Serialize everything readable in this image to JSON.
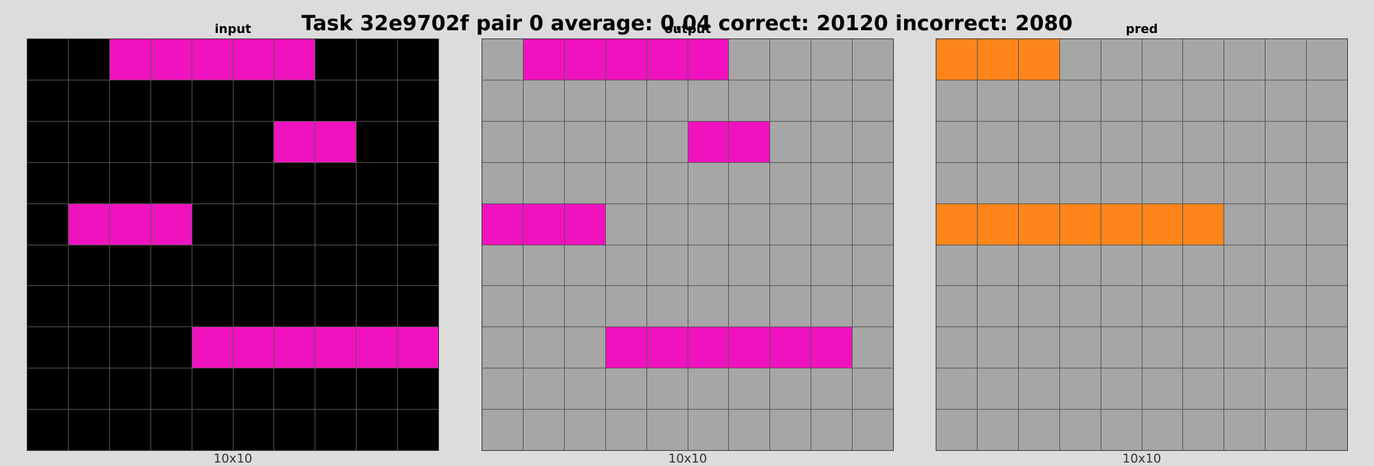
{
  "title": "Task 32e9702f pair 0 average: 0.04 correct: 20120 incorrect: 2080",
  "palette": {
    "0": "#000000",
    "5": "#a6a6a6",
    "6": "#f012be",
    "7": "#ff851b"
  },
  "panels": [
    {
      "title": "input",
      "dims": "10x10",
      "grid": [
        [
          0,
          0,
          6,
          6,
          6,
          6,
          6,
          0,
          0,
          0
        ],
        [
          0,
          0,
          0,
          0,
          0,
          0,
          0,
          0,
          0,
          0
        ],
        [
          0,
          0,
          0,
          0,
          0,
          0,
          6,
          6,
          0,
          0
        ],
        [
          0,
          0,
          0,
          0,
          0,
          0,
          0,
          0,
          0,
          0
        ],
        [
          0,
          6,
          6,
          6,
          0,
          0,
          0,
          0,
          0,
          0
        ],
        [
          0,
          0,
          0,
          0,
          0,
          0,
          0,
          0,
          0,
          0
        ],
        [
          0,
          0,
          0,
          0,
          0,
          0,
          0,
          0,
          0,
          0
        ],
        [
          0,
          0,
          0,
          0,
          6,
          6,
          6,
          6,
          6,
          6
        ],
        [
          0,
          0,
          0,
          0,
          0,
          0,
          0,
          0,
          0,
          0
        ],
        [
          0,
          0,
          0,
          0,
          0,
          0,
          0,
          0,
          0,
          0
        ]
      ]
    },
    {
      "title": "output",
      "dims": "10x10",
      "grid": [
        [
          5,
          6,
          6,
          6,
          6,
          6,
          5,
          5,
          5,
          5
        ],
        [
          5,
          5,
          5,
          5,
          5,
          5,
          5,
          5,
          5,
          5
        ],
        [
          5,
          5,
          5,
          5,
          5,
          6,
          6,
          5,
          5,
          5
        ],
        [
          5,
          5,
          5,
          5,
          5,
          5,
          5,
          5,
          5,
          5
        ],
        [
          6,
          6,
          6,
          5,
          5,
          5,
          5,
          5,
          5,
          5
        ],
        [
          5,
          5,
          5,
          5,
          5,
          5,
          5,
          5,
          5,
          5
        ],
        [
          5,
          5,
          5,
          5,
          5,
          5,
          5,
          5,
          5,
          5
        ],
        [
          5,
          5,
          5,
          6,
          6,
          6,
          6,
          6,
          6,
          5
        ],
        [
          5,
          5,
          5,
          5,
          5,
          5,
          5,
          5,
          5,
          5
        ],
        [
          5,
          5,
          5,
          5,
          5,
          5,
          5,
          5,
          5,
          5
        ]
      ]
    },
    {
      "title": "pred",
      "dims": "10x10",
      "grid": [
        [
          7,
          7,
          7,
          5,
          5,
          5,
          5,
          5,
          5,
          5
        ],
        [
          5,
          5,
          5,
          5,
          5,
          5,
          5,
          5,
          5,
          5
        ],
        [
          5,
          5,
          5,
          5,
          5,
          5,
          5,
          5,
          5,
          5
        ],
        [
          5,
          5,
          5,
          5,
          5,
          5,
          5,
          5,
          5,
          5
        ],
        [
          7,
          7,
          7,
          7,
          7,
          7,
          7,
          5,
          5,
          5
        ],
        [
          5,
          5,
          5,
          5,
          5,
          5,
          5,
          5,
          5,
          5
        ],
        [
          5,
          5,
          5,
          5,
          5,
          5,
          5,
          5,
          5,
          5
        ],
        [
          5,
          5,
          5,
          5,
          5,
          5,
          5,
          5,
          5,
          5
        ],
        [
          5,
          5,
          5,
          5,
          5,
          5,
          5,
          5,
          5,
          5
        ],
        [
          5,
          5,
          5,
          5,
          5,
          5,
          5,
          5,
          5,
          5
        ]
      ]
    }
  ]
}
